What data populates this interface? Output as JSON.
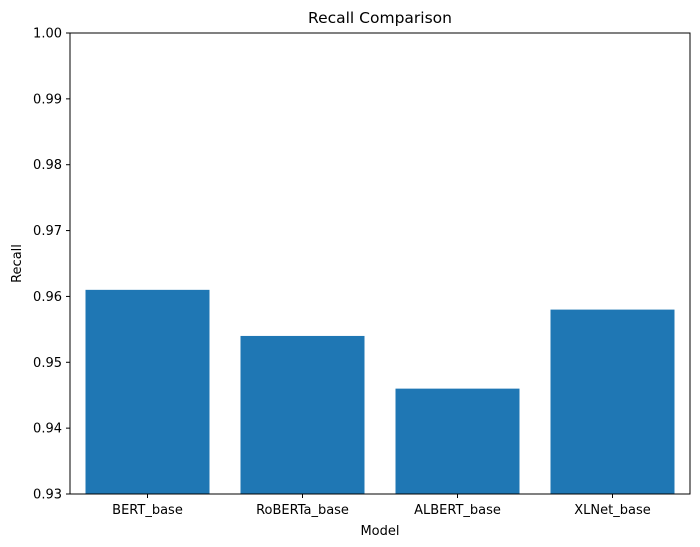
{
  "chart_data": {
    "type": "bar",
    "title": "Recall Comparison",
    "xlabel": "Model",
    "ylabel": "Recall",
    "categories": [
      "BERT_base",
      "RoBERTa_base",
      "ALBERT_base",
      "XLNet_base"
    ],
    "values": [
      0.961,
      0.954,
      0.946,
      0.958
    ],
    "ylim": [
      0.93,
      1.0
    ],
    "yticks": [
      "0.93",
      "0.94",
      "0.95",
      "0.96",
      "0.97",
      "0.98",
      "0.99",
      "1.00"
    ],
    "bar_color": "#1f77b4",
    "grid": false,
    "legend": "none"
  }
}
